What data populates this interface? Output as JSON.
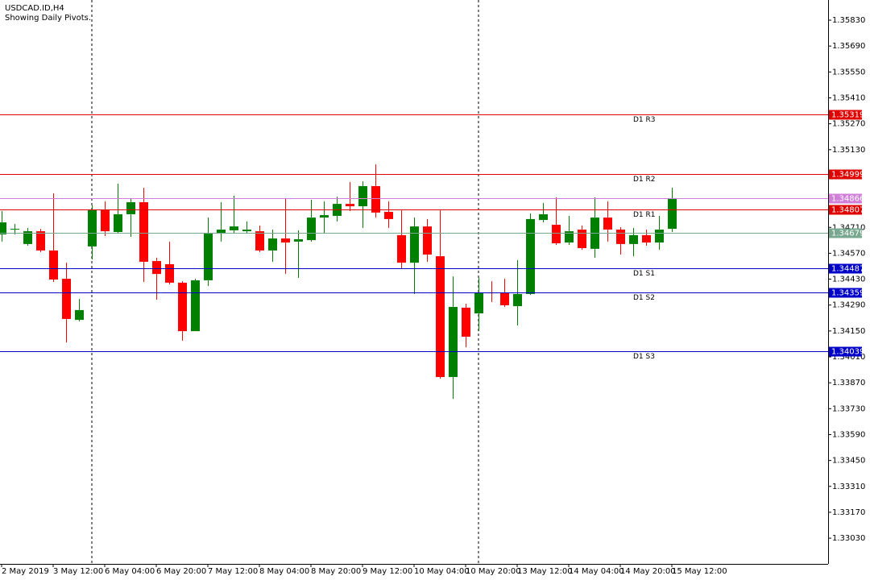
{
  "chart_data": {
    "type": "candlestick",
    "title": "USDCAD.ID,H4",
    "subtitle": "Showing Daily Pivots.",
    "categories": [
      "2 May 2019",
      null,
      null,
      null,
      "3 May 12:00",
      null,
      null,
      null,
      "6 May 04:00",
      null,
      null,
      null,
      "6 May 20:00",
      null,
      null,
      null,
      "7 May 12:00",
      null,
      null,
      null,
      "8 May 04:00",
      null,
      null,
      null,
      "8 May 20:00",
      null,
      null,
      null,
      "9 May 12:00",
      null,
      null,
      null,
      "10 May 04:00",
      null,
      null,
      null,
      "10 May 20:00",
      null,
      null,
      null,
      "13 May 12:00",
      null,
      null,
      null,
      "14 May 04:00",
      null,
      null,
      null,
      "14 May 20:00",
      null,
      null,
      null,
      "15 May 12:00"
    ],
    "open": [
      1.34672,
      1.34698,
      1.3462,
      1.34689,
      1.34585,
      1.34432,
      1.3421,
      1.34607,
      1.34807,
      1.34685,
      1.34781,
      1.34846,
      1.34528,
      1.34511,
      1.34411,
      1.34149,
      1.34424,
      1.34676,
      1.34694,
      1.34689,
      1.34689,
      1.34585,
      1.3465,
      1.34633,
      1.34641,
      1.34763,
      1.34772,
      1.34837,
      1.34824,
      1.34933,
      1.34794,
      1.34668,
      1.34519,
      1.34715,
      1.34554,
      1.33901,
      1.34276,
      1.34245,
      1.34358,
      1.34358,
      1.34284,
      1.3435,
      1.3475,
      1.34724,
      1.34628,
      1.34698,
      1.34594,
      1.34763,
      1.34698,
      1.3462,
      1.34668,
      1.34628,
      1.34702
    ],
    "high": [
      1.34798,
      1.34728,
      1.34707,
      1.34702,
      1.34894,
      1.34519,
      1.34323,
      1.34829,
      1.3485,
      1.34946,
      1.34868,
      1.34924,
      1.34546,
      1.34633,
      1.34419,
      1.34432,
      1.34763,
      1.34846,
      1.34881,
      1.34742,
      1.3472,
      1.34698,
      1.34868,
      1.34694,
      1.34859,
      1.3485,
      1.34876,
      1.34955,
      1.34959,
      1.35051,
      1.3485,
      1.34807,
      1.34763,
      1.34755,
      1.34807,
      1.34445,
      1.34297,
      1.34437,
      1.34419,
      1.34432,
      1.34533,
      1.34785,
      1.34842,
      1.34872,
      1.34772,
      1.3472,
      1.34872,
      1.3485,
      1.34711,
      1.34707,
      1.34698,
      1.34772,
      1.34924
    ],
    "low": [
      1.34633,
      1.34672,
      1.34611,
      1.34576,
      1.34415,
      1.34088,
      1.34202,
      1.34537,
      1.34663,
      1.34676,
      1.34659,
      1.34415,
      1.34319,
      1.34402,
      1.34097,
      1.34149,
      1.34393,
      1.34633,
      1.34676,
      1.34676,
      1.34576,
      1.34524,
      1.34458,
      1.34437,
      1.34633,
      1.34676,
      1.34742,
      1.34798,
      1.34707,
      1.34763,
      1.34707,
      1.34485,
      1.3435,
      1.34524,
      1.33892,
      1.33783,
      1.34062,
      1.34149,
      1.34306,
      1.3428,
      1.3418,
      1.34345,
      1.34737,
      1.34615,
      1.34615,
      1.34589,
      1.34546,
      1.34633,
      1.34563,
      1.34554,
      1.34611,
      1.34589,
      1.34685
    ],
    "close": [
      1.34737,
      1.34702,
      1.34689,
      1.34585,
      1.34428,
      1.34215,
      1.34263,
      1.34807,
      1.34689,
      1.34781,
      1.34846,
      1.34524,
      1.34458,
      1.34411,
      1.34149,
      1.34424,
      1.34676,
      1.34698,
      1.34715,
      1.34698,
      1.34585,
      1.3465,
      1.34628,
      1.34646,
      1.34763,
      1.34776,
      1.34837,
      1.34824,
      1.34933,
      1.3479,
      1.34755,
      1.34519,
      1.34715,
      1.34563,
      1.33901,
      1.3428,
      1.34119,
      1.34358,
      1.34354,
      1.34289,
      1.3435,
      1.34755,
      1.34781,
      1.34624,
      1.34689,
      1.34598,
      1.34763,
      1.34698,
      1.3462,
      1.34668,
      1.34628,
      1.34698,
      1.34868
    ],
    "up_color": "#008000",
    "down_color": "#ff0000",
    "ylim": [
      1.32891,
      1.35939
    ],
    "yticks": [
      {
        "value": 1.3583,
        "label": "1.35830"
      },
      {
        "value": 1.3569,
        "label": "1.35690"
      },
      {
        "value": 1.3555,
        "label": "1.35550"
      },
      {
        "value": 1.3541,
        "label": "1.35410"
      },
      {
        "value": 1.3527,
        "label": "1.35270"
      },
      {
        "value": 1.3513,
        "label": "1.35130"
      },
      {
        "value": 1.3471,
        "label": "1.34710"
      },
      {
        "value": 1.3457,
        "label": "1.34570"
      },
      {
        "value": 1.3443,
        "label": "1.34430"
      },
      {
        "value": 1.3429,
        "label": "1.34290"
      },
      {
        "value": 1.3415,
        "label": "1.34150"
      },
      {
        "value": 1.3401,
        "label": "1.34010"
      },
      {
        "value": 1.3387,
        "label": "1.33870"
      },
      {
        "value": 1.3373,
        "label": "1.33730"
      },
      {
        "value": 1.3359,
        "label": "1.33590"
      },
      {
        "value": 1.3345,
        "label": "1.33450"
      },
      {
        "value": 1.3331,
        "label": "1.33310"
      },
      {
        "value": 1.3317,
        "label": "1.33170"
      },
      {
        "value": 1.3303,
        "label": "1.33030"
      }
    ],
    "levels": [
      {
        "name": "D1 R3",
        "value": 1.35319,
        "color": "#e00000"
      },
      {
        "name": "D1 R2",
        "value": 1.34999,
        "color": "#e00000"
      },
      {
        "value": 1.34866,
        "color": "#d080d8"
      },
      {
        "name": "D1 R1",
        "value": 1.34807,
        "color": "#e00000"
      },
      {
        "value": 1.34679,
        "color": "#78a890"
      },
      {
        "name": "D1 S1",
        "value": 1.34487,
        "color": "#0000c8"
      },
      {
        "name": "D1 S2",
        "value": 1.34359,
        "color": "#0000c8"
      },
      {
        "name": "D1 S3",
        "value": 1.34039,
        "color": "#0000c8"
      }
    ]
  }
}
